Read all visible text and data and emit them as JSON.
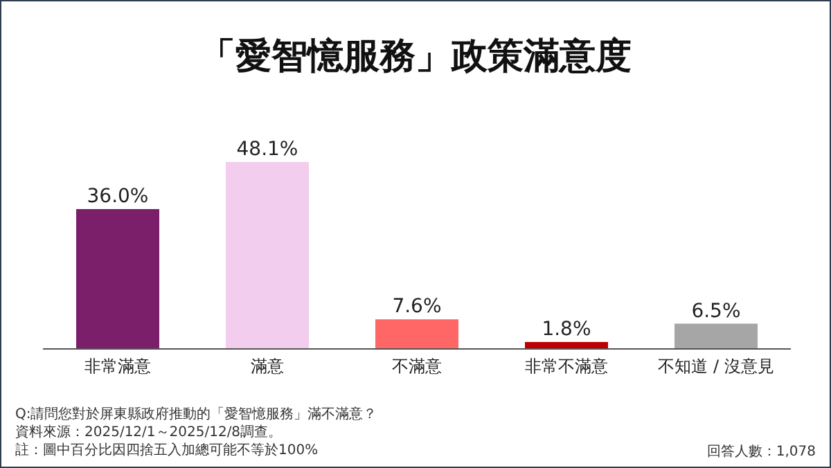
{
  "chart_data": {
    "type": "bar",
    "title": "「愛智憶服務」政策滿意度",
    "categories": [
      "非常滿意",
      "滿意",
      "不滿意",
      "非常不滿意",
      "不知道 / 沒意見"
    ],
    "values": [
      36.0,
      48.1,
      7.6,
      1.8,
      6.5
    ],
    "colors": [
      "#7b1f6a",
      "#f2cdee",
      "#ff6666",
      "#c00000",
      "#a6a6a6"
    ],
    "value_labels": [
      "36.0%",
      "48.1%",
      "7.6%",
      "1.8%",
      "6.5%"
    ],
    "grid": false,
    "legend": false,
    "annotations": [
      "Q:請問您對於屏東縣政府推動的「愛智憶服務」滿不滿意？",
      "資料來源：2025/12/1～2025/12/8調查。",
      "註：圖中百分比因四捨五入加總可能不等於100%",
      "回答人數：1,078"
    ]
  }
}
